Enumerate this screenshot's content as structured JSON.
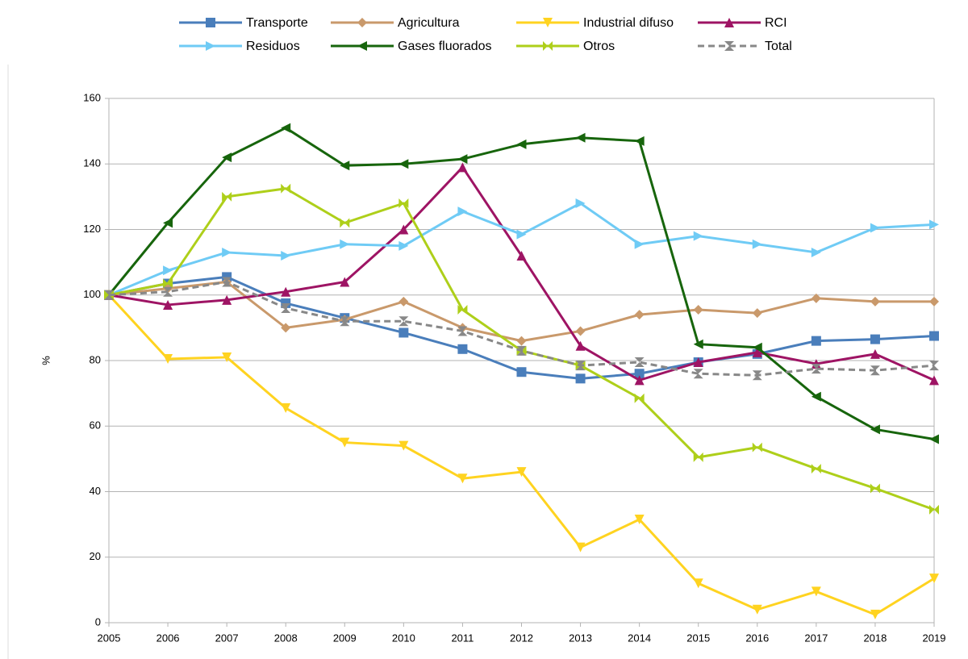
{
  "chart_data": {
    "type": "line",
    "y_label": "%",
    "x": [
      2005,
      2006,
      2007,
      2008,
      2009,
      2010,
      2011,
      2012,
      2013,
      2014,
      2015,
      2016,
      2017,
      2018,
      2019
    ],
    "xlim": [
      2005,
      2019
    ],
    "xticks": [
      2005,
      2006,
      2007,
      2008,
      2009,
      2010,
      2011,
      2012,
      2013,
      2014,
      2015,
      2016,
      2017,
      2018,
      2019
    ],
    "ylim": [
      0,
      160
    ],
    "yticks": [
      0,
      20,
      40,
      60,
      80,
      100,
      120,
      140,
      160
    ],
    "grid": true,
    "legend": "top",
    "series": [
      {
        "name": "Transporte",
        "color": "#4a7ebb",
        "marker": "square",
        "values": [
          100,
          103.5,
          105.5,
          97.5,
          93,
          88.5,
          83.5,
          76.5,
          74.5,
          76,
          79.5,
          82,
          86,
          86.5,
          87.5
        ]
      },
      {
        "name": "Agricultura",
        "color": "#c9996b",
        "marker": "diamond",
        "values": [
          100,
          102,
          104,
          90,
          92.5,
          98,
          90,
          86,
          89,
          94,
          95.5,
          94.5,
          99,
          98,
          98
        ]
      },
      {
        "name": "Industrial difuso",
        "color": "#ffd320",
        "marker": "triangle-down",
        "values": [
          100,
          80.5,
          81,
          65.5,
          55,
          54,
          44,
          46,
          23,
          31.5,
          12,
          4,
          9.5,
          2.5,
          13.5
        ]
      },
      {
        "name": "RCI",
        "color": "#9e1464",
        "marker": "triangle-up",
        "values": [
          100,
          97,
          98.5,
          101,
          104,
          120,
          139,
          112,
          84.5,
          74,
          79.5,
          82.5,
          79,
          82,
          74
        ]
      },
      {
        "name": "Residuos",
        "color": "#6fcbf5",
        "marker": "triangle-right",
        "values": [
          100,
          107.5,
          113,
          112,
          115.5,
          115,
          125.5,
          118.5,
          128,
          115.5,
          118,
          115.5,
          113,
          120.5,
          121.5
        ]
      },
      {
        "name": "Gases fluorados",
        "color": "#17650c",
        "marker": "triangle-left",
        "values": [
          100,
          122,
          142,
          151,
          139.5,
          140,
          141.5,
          146,
          148,
          147,
          85,
          84,
          69,
          59,
          56
        ]
      },
      {
        "name": "Otros",
        "color": "#aecf1a",
        "marker": "bowtie",
        "values": [
          100,
          103.5,
          130,
          132.5,
          122,
          128,
          95.5,
          83,
          78.5,
          68.5,
          50.5,
          53.5,
          47,
          41,
          34.5
        ]
      },
      {
        "name": "Total",
        "color": "#888888",
        "marker": "hourglass",
        "dash": true,
        "values": [
          100,
          101,
          104,
          96,
          92,
          92,
          89,
          83,
          78.5,
          79.5,
          76,
          75.5,
          77.5,
          77,
          78.5
        ]
      }
    ]
  }
}
